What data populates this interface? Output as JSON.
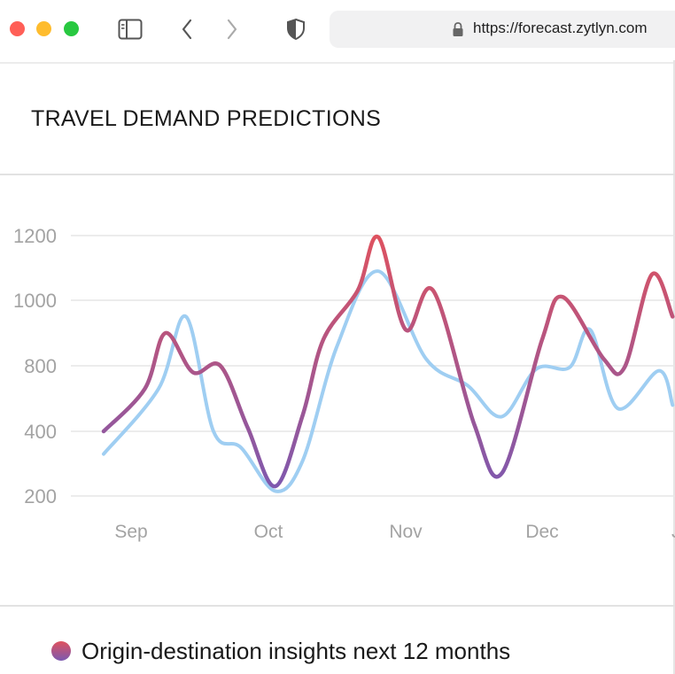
{
  "browser": {
    "url": "https://forecast.zytlyn.com",
    "controls": {
      "sidebar_icon": "sidebar-icon",
      "back_icon": "chevron-left-icon",
      "forward_icon": "chevron-right-icon",
      "shield_icon": "shield-icon",
      "lock_icon": "lock-icon"
    }
  },
  "page": {
    "title": "TRAVEL DEMAND PREDICTIONS",
    "legend_label": "Origin-destination insights next 12 months"
  },
  "colors": {
    "series_a_start": "#e0525e",
    "series_a_end": "#7b59b1",
    "series_b": "#9fcef2",
    "grid": "#e6e6e6",
    "tick": "#a3a3a3"
  },
  "chart_data": {
    "type": "line",
    "title": "TRAVEL DEMAND PREDICTIONS",
    "xlabel": "",
    "ylabel": "",
    "x_ticks": [
      "Sep",
      "Oct",
      "Nov",
      "Dec",
      "J"
    ],
    "y_ticks": [
      "1200",
      "1000",
      "800",
      "400",
      "200"
    ],
    "grid": "horizontal",
    "legend": "bottom-left",
    "series": [
      {
        "name": "Origin-destination insights next 12 months",
        "color_start": "#e0525e",
        "color_end": "#7b59b1",
        "points": [
          [
            "Sep -0.2",
            400
          ],
          [
            "Sep 0.1",
            660
          ],
          [
            "Sep 0.25",
            900
          ],
          [
            "Sep 0.45",
            760
          ],
          [
            "Sep 0.65",
            800
          ],
          [
            "Sep 0.85",
            420
          ],
          [
            "Oct 0.05",
            230
          ],
          [
            "Oct 0.25",
            500
          ],
          [
            "Oct 0.4",
            880
          ],
          [
            "Oct 0.65",
            1030
          ],
          [
            "Oct 0.8",
            1195
          ],
          [
            "Nov 0.0",
            910
          ],
          [
            "Nov 0.2",
            1030
          ],
          [
            "Nov 0.5",
            440
          ],
          [
            "Nov 0.7",
            270
          ],
          [
            "Dec 0.0",
            880
          ],
          [
            "Dec 0.15",
            1010
          ],
          [
            "Dec 0.45",
            820
          ],
          [
            "Dec 0.6",
            790
          ],
          [
            "Dec 0.8",
            1080
          ],
          [
            "Dec 0.95",
            950
          ]
        ]
      },
      {
        "name": "",
        "color": "#9fcef2",
        "points": [
          [
            "Sep -0.2",
            330
          ],
          [
            "Sep 0.2",
            660
          ],
          [
            "Sep 0.4",
            950
          ],
          [
            "Sep 0.6",
            400
          ],
          [
            "Sep 0.8",
            350
          ],
          [
            "Oct 0.05",
            215
          ],
          [
            "Oct 0.25",
            310
          ],
          [
            "Oct 0.5",
            860
          ],
          [
            "Oct 0.8",
            1090
          ],
          [
            "Nov 0.15",
            820
          ],
          [
            "Nov 0.45",
            680
          ],
          [
            "Nov 0.7",
            490
          ],
          [
            "Nov 0.95",
            780
          ],
          [
            "Dec 0.2",
            790
          ],
          [
            "Dec 0.35",
            910
          ],
          [
            "Dec 0.55",
            540
          ],
          [
            "Dec 0.85",
            770
          ],
          [
            "Dec 0.95",
            560
          ]
        ]
      }
    ]
  }
}
